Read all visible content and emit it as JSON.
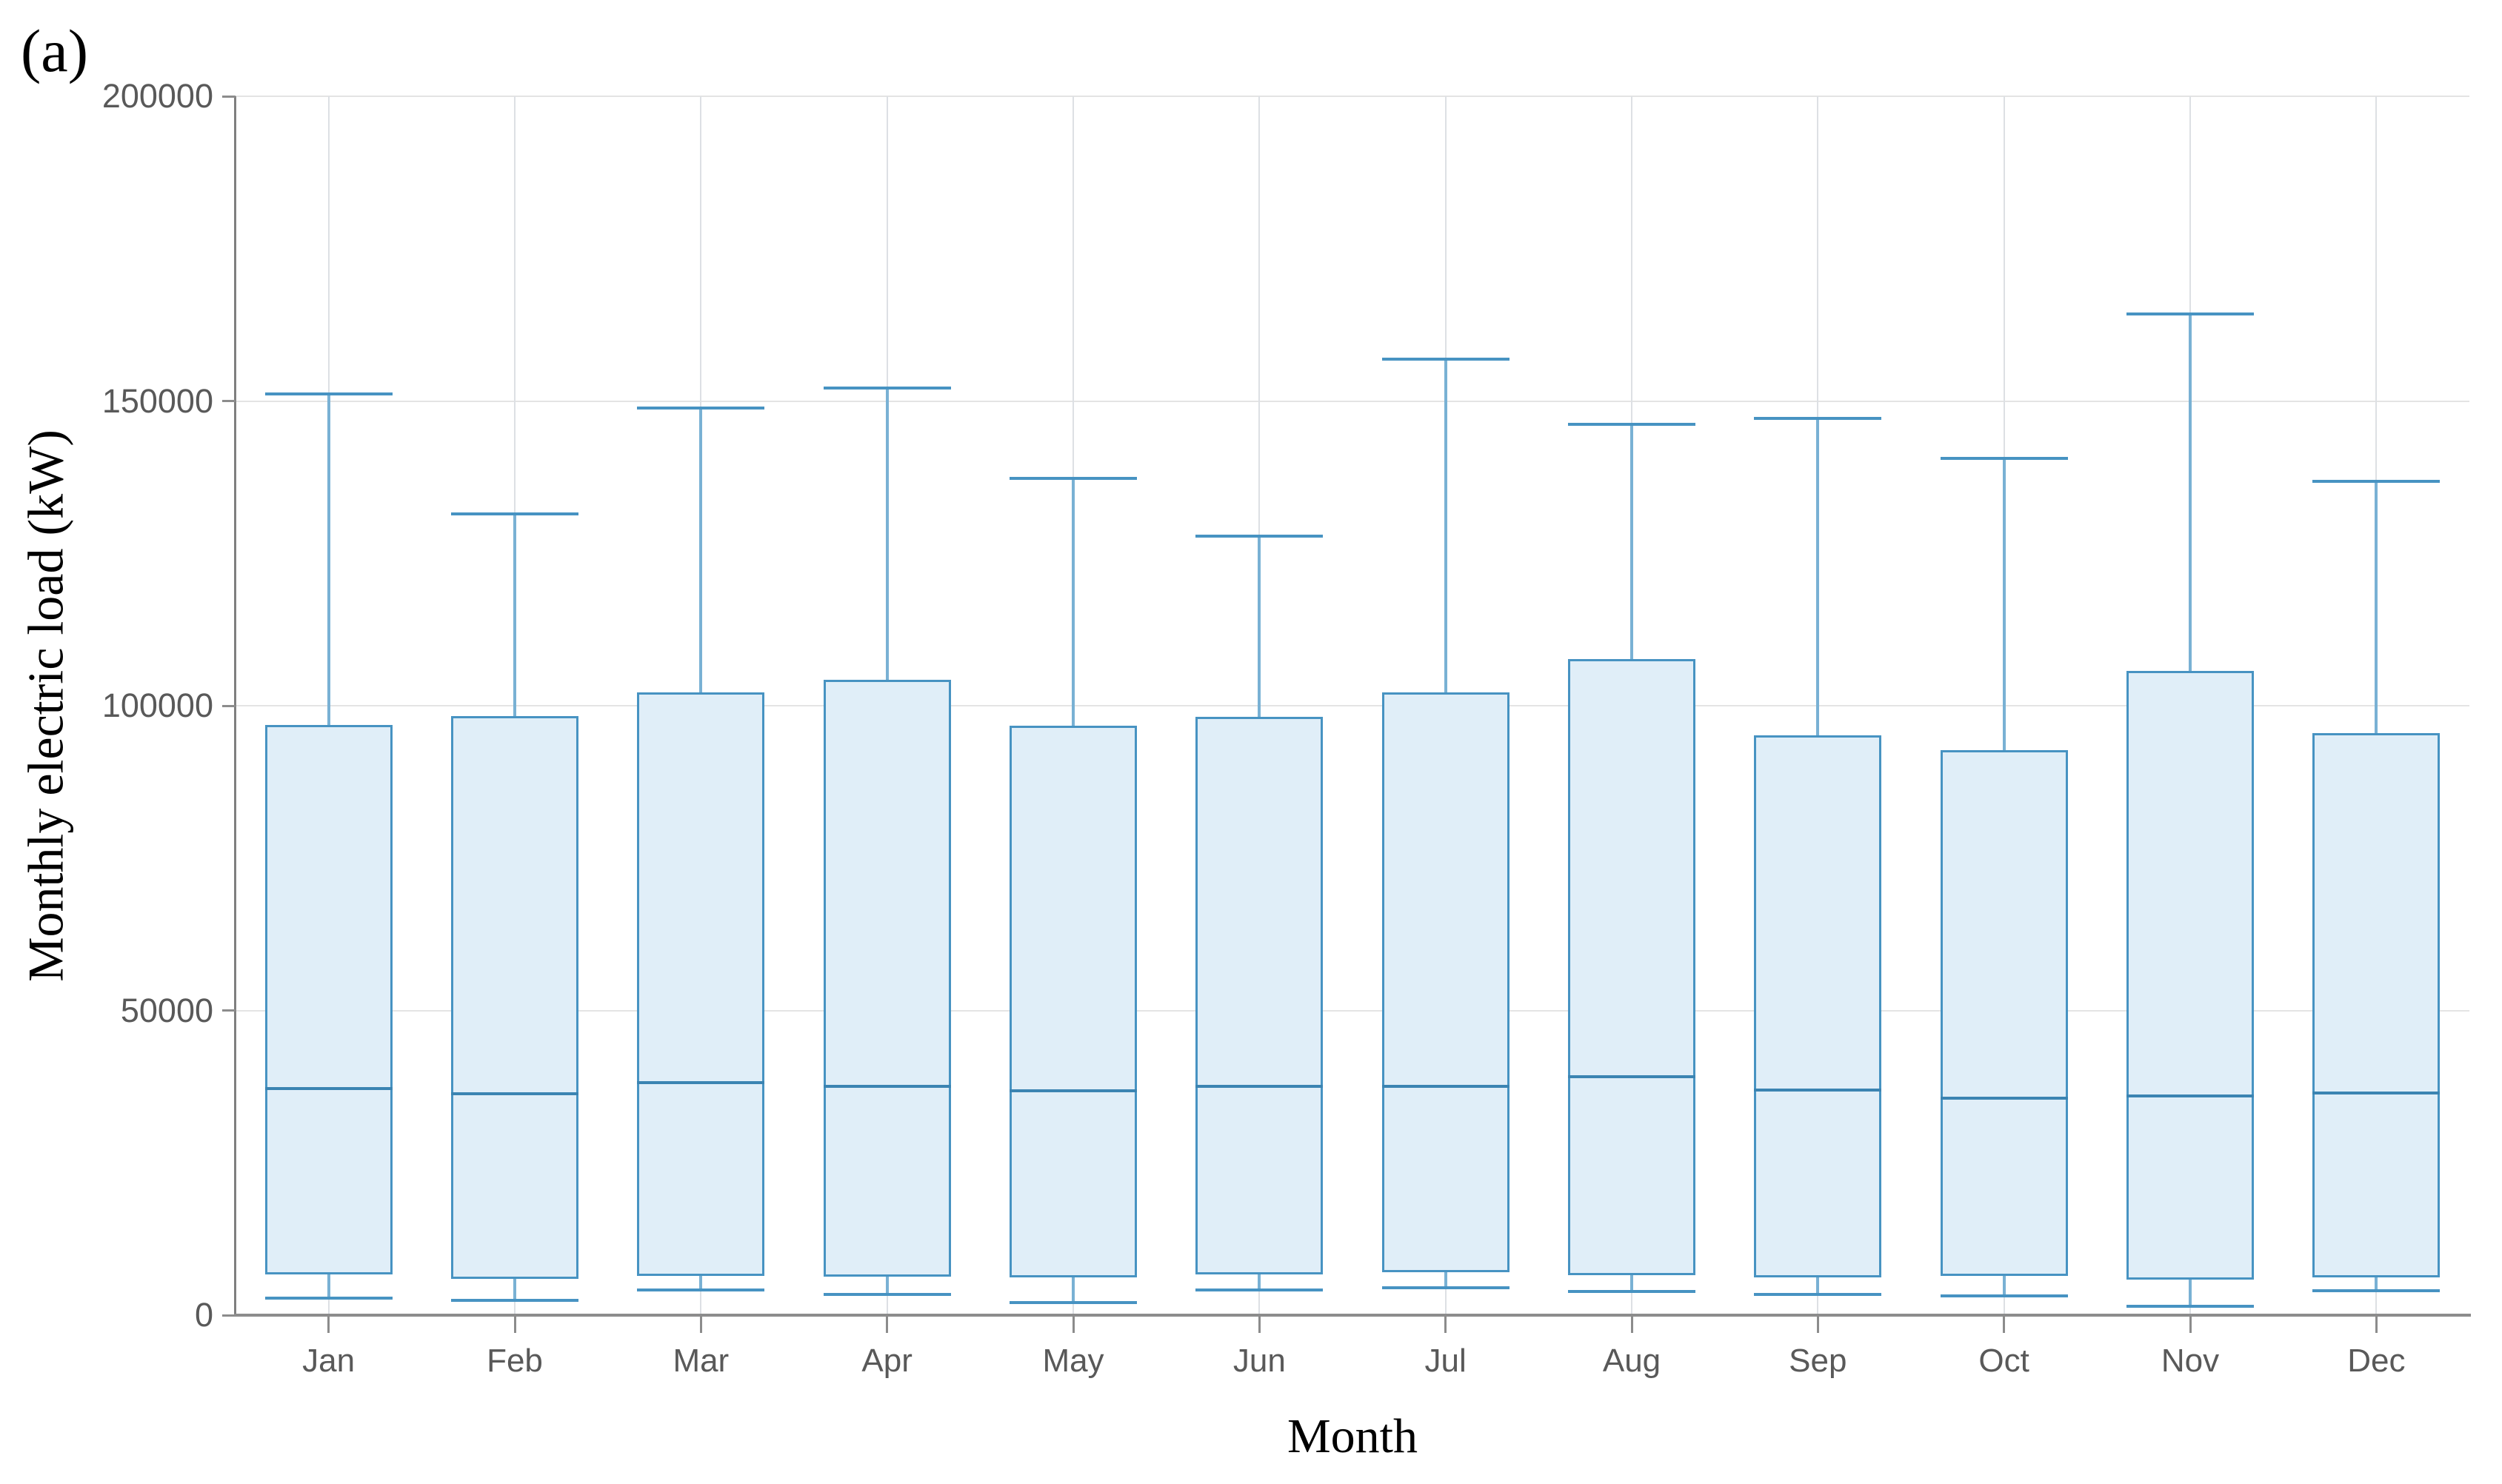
{
  "figure_label": "(a)",
  "chart_data": {
    "type": "box",
    "title": "",
    "xlabel": "Month",
    "ylabel": "Monthly electric load (kW)",
    "ylim": [
      0,
      200000
    ],
    "yticks": [
      0,
      50000,
      100000,
      150000,
      200000
    ],
    "ytick_labels": [
      "0",
      "50000",
      "100000",
      "150000",
      "200000"
    ],
    "grid": "on",
    "legend": "none",
    "categories": [
      "Jan",
      "Feb",
      "Mar",
      "Apr",
      "May",
      "Jun",
      "Jul",
      "Aug",
      "Sep",
      "Oct",
      "Nov",
      "Dec"
    ],
    "boxes": [
      {
        "month": "Jan",
        "whisker_low": 2800,
        "q1": 6700,
        "median": 37200,
        "q3": 96800,
        "whisker_high": 151200
      },
      {
        "month": "Feb",
        "whisker_low": 2400,
        "q1": 6000,
        "median": 36300,
        "q3": 98300,
        "whisker_high": 131500
      },
      {
        "month": "Mar",
        "whisker_low": 4100,
        "q1": 6500,
        "median": 38200,
        "q3": 102200,
        "whisker_high": 148900
      },
      {
        "month": "Apr",
        "whisker_low": 3400,
        "q1": 6300,
        "median": 37600,
        "q3": 104200,
        "whisker_high": 152100
      },
      {
        "month": "May",
        "whisker_low": 2100,
        "q1": 6200,
        "median": 36800,
        "q3": 96700,
        "whisker_high": 137300
      },
      {
        "month": "Jun",
        "whisker_low": 4100,
        "q1": 6700,
        "median": 37500,
        "q3": 98200,
        "whisker_high": 127800
      },
      {
        "month": "Jul",
        "whisker_low": 4500,
        "q1": 7000,
        "median": 37600,
        "q3": 102200,
        "whisker_high": 156900
      },
      {
        "month": "Aug",
        "whisker_low": 3900,
        "q1": 6600,
        "median": 39100,
        "q3": 107600,
        "whisker_high": 146200
      },
      {
        "month": "Sep",
        "whisker_low": 3400,
        "q1": 6200,
        "median": 36900,
        "q3": 95100,
        "whisker_high": 147100
      },
      {
        "month": "Oct",
        "whisker_low": 3100,
        "q1": 6400,
        "median": 35600,
        "q3": 92700,
        "whisker_high": 140600
      },
      {
        "month": "Nov",
        "whisker_low": 1500,
        "q1": 5800,
        "median": 36000,
        "q3": 105700,
        "whisker_high": 164300
      },
      {
        "month": "Dec",
        "whisker_low": 4000,
        "q1": 6200,
        "median": 36400,
        "q3": 95500,
        "whisker_high": 136800
      }
    ]
  },
  "colors": {
    "box_fill": "#e0eef8",
    "box_border": "#4793c2",
    "median": "#3b84b2",
    "whisker_stem": "#79b1d4",
    "whisker_cap": "#4793c2",
    "hgrid": "#e4e4e4",
    "vgrid": "#dde0e4",
    "axis": "#8c8c8c",
    "tick_text": "#595959",
    "title_text": "#000000"
  }
}
